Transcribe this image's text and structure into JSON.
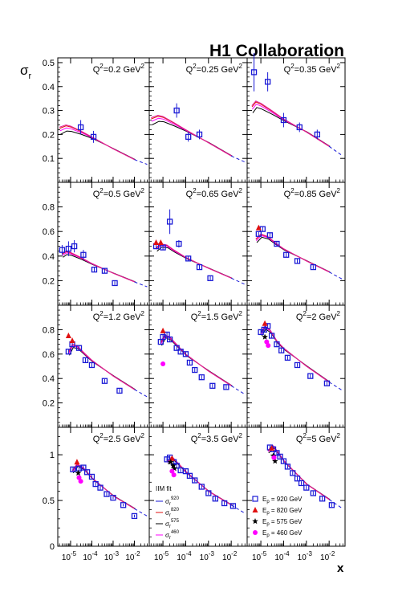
{
  "title": "H1 Collaboration",
  "ylabel": "σ",
  "ylabel_sub": "r",
  "xlabel": "x",
  "colors": {
    "data": "#1a1ad6",
    "fit": "#1a1ad6",
    "pink": "#e0209a",
    "red": "#e01010",
    "magenta": "#ff00ff",
    "black": "#000000"
  },
  "legend_left": {
    "title": "IIM fit",
    "items": [
      {
        "sup": "920",
        "color": "#1a1ad6"
      },
      {
        "sup": "820",
        "color": "#e01010"
      },
      {
        "sup": "575",
        "color": "#000000"
      },
      {
        "sup": "460",
        "color": "#ff00ff"
      }
    ]
  },
  "legend_right": {
    "items": [
      {
        "marker": "square",
        "label": "920 GeV",
        "color": "#1a1ad6"
      },
      {
        "marker": "triangle",
        "label": "820 GeV",
        "color": "#e01010"
      },
      {
        "marker": "star",
        "label": "575 GeV",
        "color": "#000000"
      },
      {
        "marker": "circle",
        "label": "460 GeV",
        "color": "#ff00ff"
      }
    ]
  },
  "chart_data": {
    "type": "scatter",
    "xlabel": "x",
    "ylabel": "σ_r",
    "xscale": "log",
    "xlim": [
      2.5e-06,
      0.05
    ],
    "x_ticks": [
      "10^-5",
      "10^-4",
      "10^-3",
      "10^-2"
    ],
    "rows": [
      {
        "ylim": [
          0,
          0.52
        ],
        "yticks": [
          "0.1",
          "0.2",
          "0.3",
          "0.4",
          "0.5"
        ],
        "ytick_values": [
          0.1,
          0.2,
          0.3,
          0.4,
          0.5
        ]
      },
      {
        "ylim": [
          0,
          1.0
        ],
        "yticks": [
          "0.2",
          "0.4",
          "0.6",
          "0.8"
        ],
        "ytick_values": [
          0.2,
          0.4,
          0.6,
          0.8
        ]
      },
      {
        "ylim": [
          0,
          1.0
        ],
        "yticks": [
          "0.2",
          "0.4",
          "0.6",
          "0.8"
        ],
        "ytick_values": [
          0.2,
          0.4,
          0.6,
          0.8
        ]
      },
      {
        "ylim": [
          0,
          1.3
        ],
        "yticks": [
          "0",
          "0.5",
          "1"
        ],
        "ytick_values": [
          0,
          0.5,
          1.0
        ]
      }
    ],
    "panels": [
      {
        "q2_label": "Q",
        "q2_value": "=0.2 GeV",
        "row": 0,
        "col": 0,
        "data_920": [
          [
            3e-05,
            0.23,
            0.03
          ],
          [
            0.00012,
            0.19,
            0.025
          ]
        ],
        "fit": [
          [
            3e-06,
            0.23
          ],
          [
            6e-06,
            0.24
          ],
          [
            1e-05,
            0.235
          ],
          [
            3e-05,
            0.215
          ],
          [
            0.0001,
            0.19
          ],
          [
            0.001,
            0.14
          ],
          [
            0.01,
            0.095
          ],
          [
            0.04,
            0.075
          ]
        ]
      },
      {
        "q2_label": "Q",
        "q2_value": "=0.25 GeV",
        "row": 0,
        "col": 1,
        "data_920": [
          [
            4e-05,
            0.3,
            0.03
          ],
          [
            0.00013,
            0.19,
            0.02
          ],
          [
            0.0004,
            0.2,
            0.02
          ]
        ],
        "fit": [
          [
            3e-06,
            0.27
          ],
          [
            6e-06,
            0.28
          ],
          [
            1e-05,
            0.275
          ],
          [
            3e-05,
            0.25
          ],
          [
            0.0001,
            0.22
          ],
          [
            0.001,
            0.165
          ],
          [
            0.01,
            0.11
          ],
          [
            0.04,
            0.085
          ]
        ]
      },
      {
        "q2_label": "Q",
        "q2_value": "=0.35 GeV",
        "row": 0,
        "col": 2,
        "data_920": [
          [
            5e-06,
            0.46,
            0.08
          ],
          [
            2e-05,
            0.42,
            0.04
          ],
          [
            0.0001,
            0.26,
            0.03
          ],
          [
            0.0005,
            0.23,
            0.02
          ],
          [
            0.003,
            0.2,
            0.02
          ]
        ],
        "fit": [
          [
            4e-06,
            0.32
          ],
          [
            6e-06,
            0.34
          ],
          [
            1e-05,
            0.33
          ],
          [
            3e-05,
            0.3
          ],
          [
            0.0001,
            0.265
          ],
          [
            0.001,
            0.21
          ],
          [
            0.01,
            0.15
          ],
          [
            0.04,
            0.11
          ]
        ]
      },
      {
        "q2_label": "Q",
        "q2_value": "=0.5 GeV",
        "row": 1,
        "col": 0,
        "data_920": [
          [
            4e-06,
            0.45,
            0.04
          ],
          [
            8e-06,
            0.46,
            0.06
          ],
          [
            1.5e-05,
            0.48,
            0.05
          ],
          [
            4e-05,
            0.41,
            0.04
          ],
          [
            0.00013,
            0.29,
            0.02
          ],
          [
            0.0004,
            0.28,
            0.02
          ],
          [
            0.0012,
            0.18,
            0.015
          ]
        ],
        "fit": [
          [
            4e-06,
            0.42
          ],
          [
            6e-06,
            0.44
          ],
          [
            1e-05,
            0.43
          ],
          [
            3e-05,
            0.39
          ],
          [
            0.0001,
            0.34
          ],
          [
            0.001,
            0.26
          ],
          [
            0.01,
            0.19
          ],
          [
            0.04,
            0.15
          ]
        ]
      },
      {
        "q2_label": "Q",
        "q2_value": "=0.65 GeV",
        "row": 1,
        "col": 1,
        "data_920": [
          [
            5e-06,
            0.48,
            0.02
          ],
          [
            1e-05,
            0.47,
            0.02
          ],
          [
            2e-05,
            0.68,
            0.1
          ],
          [
            5e-05,
            0.5,
            0.03
          ],
          [
            0.00013,
            0.38,
            0.02
          ],
          [
            0.0004,
            0.31,
            0.02
          ],
          [
            0.0012,
            0.22,
            0.015
          ]
        ],
        "data_820": [
          [
            5e-06,
            0.51
          ],
          [
            8e-06,
            0.51
          ]
        ],
        "fit": [
          [
            5e-06,
            0.47
          ],
          [
            8e-06,
            0.5
          ],
          [
            1.5e-05,
            0.49
          ],
          [
            3e-05,
            0.45
          ],
          [
            0.0001,
            0.39
          ],
          [
            0.001,
            0.3
          ],
          [
            0.01,
            0.22
          ],
          [
            0.04,
            0.17
          ]
        ]
      },
      {
        "q2_label": "Q",
        "q2_value": "=0.85 GeV",
        "row": 1,
        "col": 2,
        "data_920": [
          [
            8e-06,
            0.58,
            0.02
          ],
          [
            1.2e-05,
            0.62,
            0.02
          ],
          [
            2.5e-05,
            0.57,
            0.02
          ],
          [
            5e-05,
            0.5,
            0.02
          ],
          [
            0.00013,
            0.41,
            0.02
          ],
          [
            0.0004,
            0.36,
            0.02
          ],
          [
            0.002,
            0.31,
            0.015
          ]
        ],
        "data_820": [
          [
            8e-06,
            0.63
          ]
        ],
        "fit": [
          [
            6e-06,
            0.54
          ],
          [
            1e-05,
            0.58
          ],
          [
            2e-05,
            0.56
          ],
          [
            5e-05,
            0.5
          ],
          [
            0.0001,
            0.46
          ],
          [
            0.001,
            0.36
          ],
          [
            0.01,
            0.27
          ],
          [
            0.04,
            0.21
          ]
        ]
      },
      {
        "q2_label": "Q",
        "q2_value": "=1.2 GeV",
        "row": 2,
        "col": 0,
        "data_920": [
          [
            8e-06,
            0.62,
            0.02
          ],
          [
            1.2e-05,
            0.68,
            0.02
          ],
          [
            2.5e-05,
            0.65,
            0.02
          ],
          [
            5e-05,
            0.55,
            0.02
          ],
          [
            0.0001,
            0.51,
            0.02
          ],
          [
            0.0004,
            0.38,
            0.015
          ],
          [
            0.002,
            0.3,
            0.015
          ]
        ],
        "data_820": [
          [
            8e-06,
            0.75
          ],
          [
            1.2e-05,
            0.71
          ]
        ],
        "fit": [
          [
            8e-06,
            0.62
          ],
          [
            1.2e-05,
            0.68
          ],
          [
            2e-05,
            0.67
          ],
          [
            5e-05,
            0.6
          ],
          [
            0.0001,
            0.55
          ],
          [
            0.001,
            0.42
          ],
          [
            0.01,
            0.31
          ],
          [
            0.04,
            0.25
          ]
        ]
      },
      {
        "q2_label": "Q",
        "q2_value": "=1.5 GeV",
        "row": 2,
        "col": 1,
        "data_920": [
          [
            8e-06,
            0.7,
            0.02
          ],
          [
            1e-05,
            0.74,
            0.02
          ],
          [
            1.5e-05,
            0.76,
            0.02
          ],
          [
            2e-05,
            0.72,
            0.02
          ],
          [
            4e-05,
            0.65,
            0.02
          ],
          [
            6e-05,
            0.62,
            0.02
          ],
          [
            0.0001,
            0.6,
            0.02
          ],
          [
            0.00015,
            0.53,
            0.02
          ],
          [
            0.00025,
            0.47,
            0.02
          ],
          [
            0.0005,
            0.41,
            0.015
          ],
          [
            0.0015,
            0.34,
            0.015
          ],
          [
            0.006,
            0.33,
            0.015
          ]
        ],
        "data_820": [
          [
            1e-05,
            0.79
          ]
        ],
        "data_460": [
          [
            1e-05,
            0.52
          ]
        ],
        "fit": [
          [
            8e-06,
            0.7
          ],
          [
            1.2e-05,
            0.76
          ],
          [
            2e-05,
            0.74
          ],
          [
            5e-05,
            0.66
          ],
          [
            0.0001,
            0.6
          ],
          [
            0.001,
            0.46
          ],
          [
            0.01,
            0.34
          ],
          [
            0.04,
            0.27
          ]
        ]
      },
      {
        "q2_label": "Q",
        "q2_value": "=2 GeV",
        "row": 2,
        "col": 2,
        "data_920": [
          [
            1e-05,
            0.78,
            0.02
          ],
          [
            1.4e-05,
            0.8,
            0.02
          ],
          [
            2e-05,
            0.83,
            0.02
          ],
          [
            3e-05,
            0.75,
            0.02
          ],
          [
            5e-05,
            0.68,
            0.02
          ],
          [
            8e-05,
            0.63,
            0.02
          ],
          [
            0.00015,
            0.57,
            0.02
          ],
          [
            0.0004,
            0.51,
            0.015
          ],
          [
            0.0015,
            0.42,
            0.015
          ],
          [
            0.008,
            0.36,
            0.015
          ]
        ],
        "data_820": [
          [
            1.5e-05,
            0.85
          ]
        ],
        "data_575": [
          [
            1.5e-05,
            0.74
          ]
        ],
        "data_460": [
          [
            1.8e-05,
            0.7
          ],
          [
            2.1e-05,
            0.67
          ]
        ],
        "fit": [
          [
            1e-05,
            0.78
          ],
          [
            1.5e-05,
            0.83
          ],
          [
            2.5e-05,
            0.8
          ],
          [
            5e-05,
            0.71
          ],
          [
            0.0001,
            0.65
          ],
          [
            0.001,
            0.5
          ],
          [
            0.01,
            0.37
          ],
          [
            0.04,
            0.3
          ]
        ]
      },
      {
        "q2_label": "Q",
        "q2_value": "=2.5 GeV",
        "row": 3,
        "col": 0,
        "data_920": [
          [
            1.3e-05,
            0.84,
            0.02
          ],
          [
            2.5e-05,
            0.85,
            0.02
          ],
          [
            4e-05,
            0.86,
            0.02
          ],
          [
            6e-05,
            0.81,
            0.02
          ],
          [
            0.0001,
            0.76,
            0.02
          ],
          [
            0.00015,
            0.68,
            0.02
          ],
          [
            0.00025,
            0.64,
            0.02
          ],
          [
            0.0005,
            0.57,
            0.02
          ],
          [
            0.001,
            0.53,
            0.015
          ],
          [
            0.003,
            0.45,
            0.015
          ],
          [
            0.01,
            0.33,
            0.015
          ]
        ],
        "data_820": [
          [
            2e-05,
            0.92
          ]
        ],
        "data_575": [
          [
            2.3e-05,
            0.8
          ]
        ],
        "data_460": [
          [
            2.5e-05,
            0.75
          ],
          [
            3e-05,
            0.71
          ]
        ],
        "fit": [
          [
            1.2e-05,
            0.83
          ],
          [
            2e-05,
            0.9
          ],
          [
            4e-05,
            0.86
          ],
          [
            0.0001,
            0.75
          ],
          [
            0.001,
            0.55
          ],
          [
            0.01,
            0.41
          ],
          [
            0.04,
            0.33
          ]
        ]
      },
      {
        "q2_label": "Q",
        "q2_value": "=3.5 GeV",
        "row": 3,
        "col": 1,
        "data_920": [
          [
            1.5e-05,
            0.95,
            0.02
          ],
          [
            2e-05,
            0.97,
            0.02
          ],
          [
            3e-05,
            0.92,
            0.02
          ],
          [
            4e-05,
            0.88,
            0.02
          ],
          [
            6e-05,
            0.83,
            0.02
          ],
          [
            0.0001,
            0.82,
            0.02
          ],
          [
            0.00015,
            0.77,
            0.02
          ],
          [
            0.00025,
            0.72,
            0.02
          ],
          [
            0.0005,
            0.65,
            0.02
          ],
          [
            0.001,
            0.58,
            0.02
          ],
          [
            0.002,
            0.52,
            0.02
          ],
          [
            0.005,
            0.47,
            0.02
          ],
          [
            0.012,
            0.44,
            0.02
          ]
        ],
        "data_820": [
          [
            2.5e-05,
            0.96
          ]
        ],
        "data_575": [
          [
            2.2e-05,
            0.92
          ],
          [
            2.8e-05,
            0.88
          ],
          [
            3.2e-05,
            0.85
          ]
        ],
        "data_460": [
          [
            2.5e-05,
            0.82
          ],
          [
            3e-05,
            0.78
          ]
        ],
        "fit": [
          [
            1.5e-05,
            0.93
          ],
          [
            2.5e-05,
            0.98
          ],
          [
            5e-05,
            0.9
          ],
          [
            0.0001,
            0.82
          ],
          [
            0.001,
            0.6
          ],
          [
            0.01,
            0.45
          ],
          [
            0.04,
            0.36
          ]
        ]
      },
      {
        "q2_label": "Q",
        "q2_value": "=5 GeV",
        "row": 3,
        "col": 2,
        "data_920": [
          [
            2.5e-05,
            1.08,
            0.02
          ],
          [
            3.5e-05,
            1.06,
            0.02
          ],
          [
            5e-05,
            1.02,
            0.02
          ],
          [
            7e-05,
            0.98,
            0.02
          ],
          [
            0.0001,
            0.93,
            0.02
          ],
          [
            0.00015,
            0.87,
            0.02
          ],
          [
            0.00025,
            0.8,
            0.02
          ],
          [
            0.0004,
            0.74,
            0.02
          ],
          [
            0.0006,
            0.69,
            0.02
          ],
          [
            0.001,
            0.64,
            0.02
          ],
          [
            0.002,
            0.58,
            0.02
          ],
          [
            0.005,
            0.52,
            0.02
          ],
          [
            0.013,
            0.45,
            0.02
          ]
        ],
        "data_820": [
          [
            3e-05,
            1.07
          ]
        ],
        "data_575": [
          [
            3.5e-05,
            0.99
          ],
          [
            4.2e-05,
            0.93
          ]
        ],
        "data_460": [
          [
            3.8e-05,
            0.97
          ]
        ],
        "fit": [
          [
            2e-05,
            1.05
          ],
          [
            3.5e-05,
            1.1
          ],
          [
            6e-05,
            1.02
          ],
          [
            0.0001,
            0.94
          ],
          [
            0.001,
            0.68
          ],
          [
            0.01,
            0.51
          ],
          [
            0.04,
            0.41
          ]
        ]
      }
    ]
  }
}
